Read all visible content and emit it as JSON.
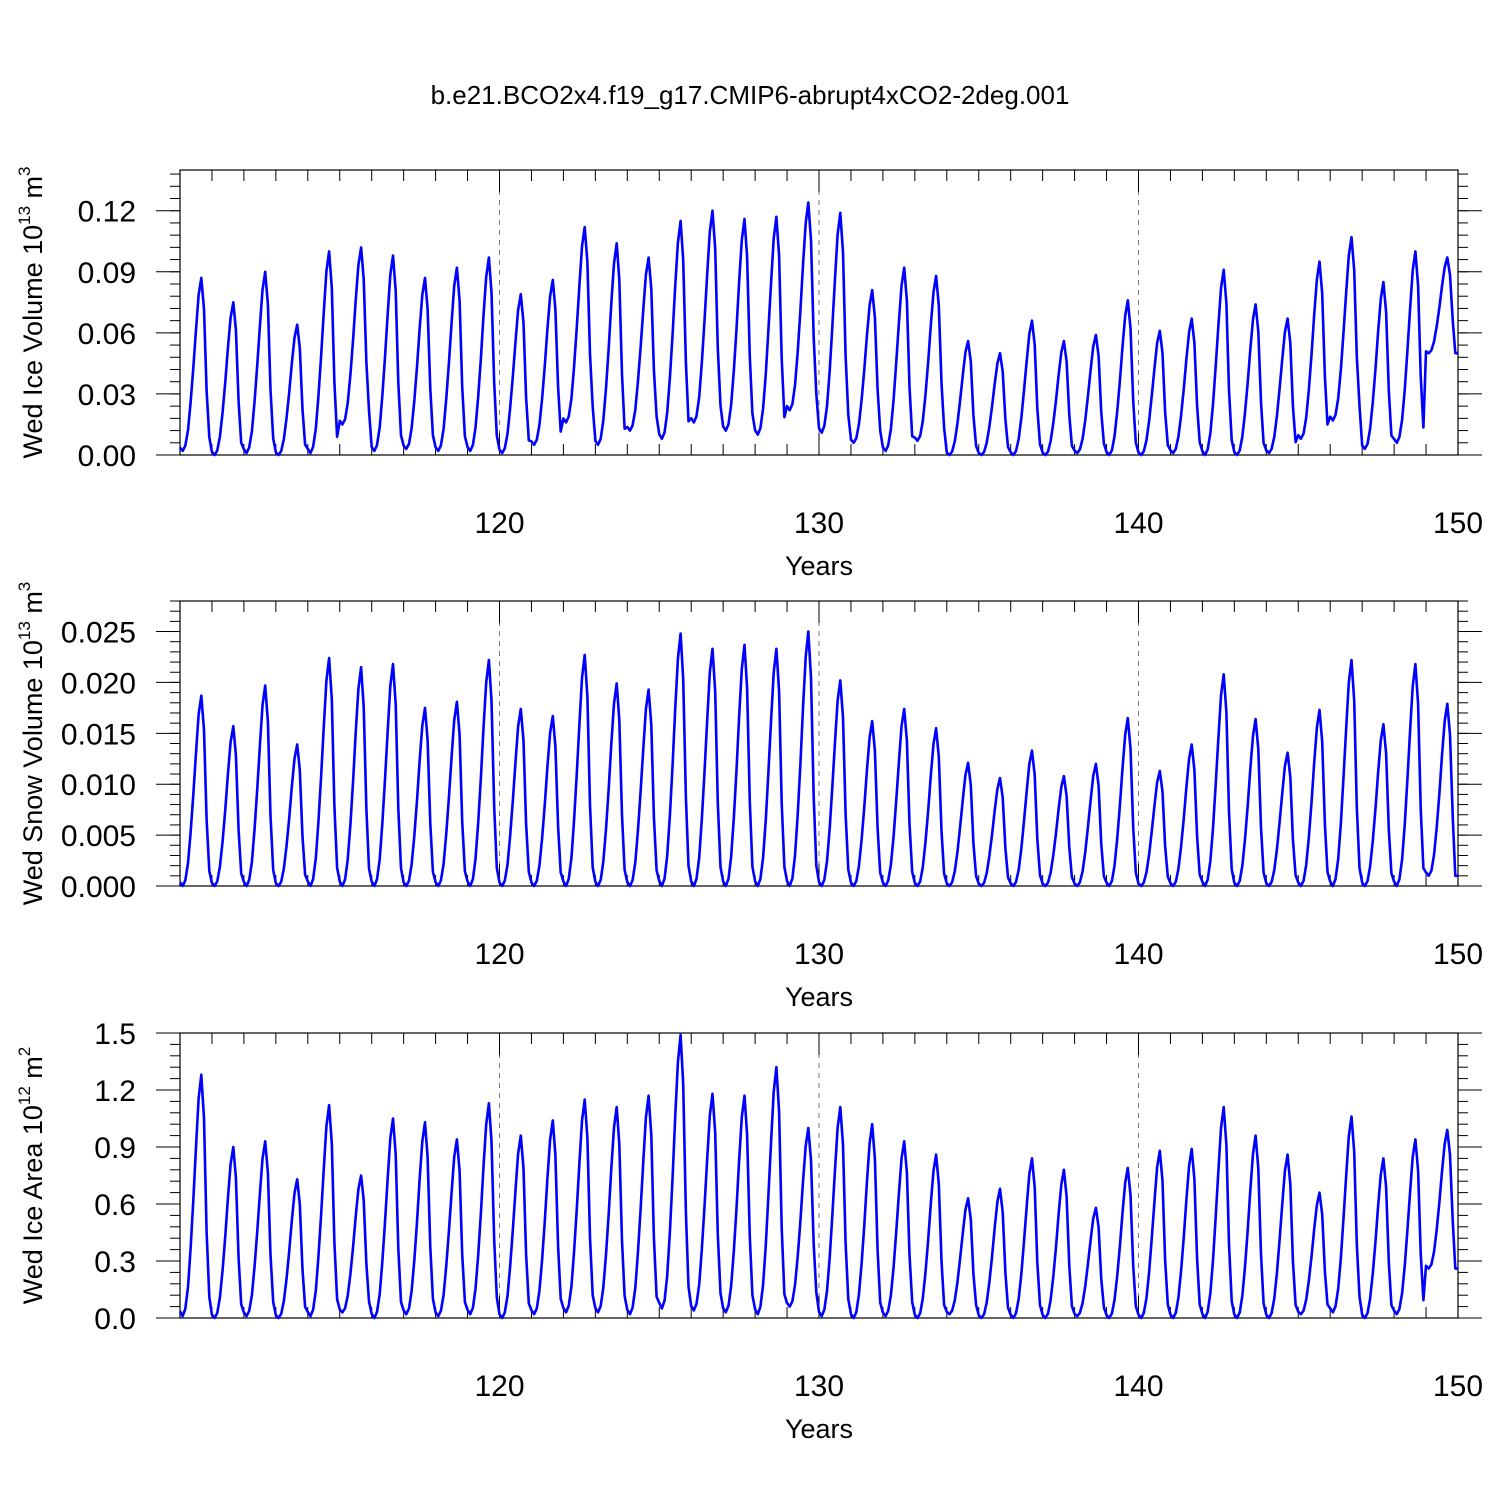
{
  "title": "b.e21.BCO2x4.f19_g17.CMIP6-abrupt4xCO2-2deg.001",
  "chart_data": [
    {
      "type": "line",
      "ylabel": "Wed Ice Volume 10",
      "ylabel_exp": "13",
      "ylabel_unit": " m",
      "ylabel_unit_exp": "3",
      "xlabel": "Years",
      "xlim": [
        110,
        150
      ],
      "ylim": [
        0,
        0.14
      ],
      "yticks": [
        "0.00",
        "0.03",
        "0.06",
        "0.09",
        "0.12"
      ],
      "ytick_values": [
        0,
        0.03,
        0.06,
        0.09,
        0.12
      ],
      "xticks": [
        "120",
        "130",
        "140",
        "150"
      ],
      "xtick_values": [
        120,
        130,
        140,
        150
      ],
      "year_start": 111,
      "line_color": "#0000ff",
      "annual_max": [
        0.087,
        0.075,
        0.09,
        0.064,
        0.1,
        0.102,
        0.098,
        0.087,
        0.092,
        0.097,
        0.079,
        0.086,
        0.112,
        0.104,
        0.097,
        0.115,
        0.12,
        0.116,
        0.117,
        0.124,
        0.119,
        0.081,
        0.092,
        0.088,
        0.056,
        0.05,
        0.066,
        0.056,
        0.059,
        0.076,
        0.061,
        0.067,
        0.091,
        0.074,
        0.067,
        0.095,
        0.107,
        0.085,
        0.1,
        0.097
      ],
      "annual_min": [
        0.002,
        0.0,
        0.001,
        0.0,
        0.001,
        0.015,
        0.002,
        0.003,
        0.002,
        0.002,
        0.001,
        0.005,
        0.016,
        0.005,
        0.012,
        0.008,
        0.016,
        0.012,
        0.01,
        0.022,
        0.011,
        0.006,
        0.002,
        0.007,
        0.0,
        0.0,
        0.0,
        0.0,
        0.001,
        0.0,
        0.0,
        0.001,
        0.0,
        0.0,
        0.001,
        0.008,
        0.017,
        0.003,
        0.006,
        0.05
      ]
    },
    {
      "type": "line",
      "ylabel": "Wed Snow Volume 10",
      "ylabel_exp": "13",
      "ylabel_unit": " m",
      "ylabel_unit_exp": "3",
      "xlabel": "Years",
      "xlim": [
        110,
        150
      ],
      "ylim": [
        0,
        0.028
      ],
      "yticks": [
        "0.000",
        "0.005",
        "0.010",
        "0.015",
        "0.020",
        "0.025"
      ],
      "ytick_values": [
        0,
        0.005,
        0.01,
        0.015,
        0.02,
        0.025
      ],
      "xticks": [
        "120",
        "130",
        "140",
        "150"
      ],
      "xtick_values": [
        120,
        130,
        140,
        150
      ],
      "year_start": 111,
      "line_color": "#0000ff",
      "annual_max": [
        0.0187,
        0.0157,
        0.0197,
        0.0139,
        0.0224,
        0.0215,
        0.0218,
        0.0175,
        0.0181,
        0.0222,
        0.0174,
        0.0167,
        0.0227,
        0.0199,
        0.0193,
        0.0248,
        0.0233,
        0.0237,
        0.0233,
        0.025,
        0.0202,
        0.0162,
        0.0174,
        0.0155,
        0.0121,
        0.0106,
        0.0133,
        0.0108,
        0.012,
        0.0165,
        0.0113,
        0.0139,
        0.0208,
        0.0164,
        0.0131,
        0.0173,
        0.0222,
        0.0159,
        0.0218,
        0.0179
      ],
      "annual_min": [
        0.0,
        0.0,
        0.0,
        0.0,
        0.0,
        0.0,
        0.0,
        0.0,
        0.0,
        0.0,
        0.0,
        0.0,
        0.0,
        0.0,
        0.0,
        0.0,
        0.0,
        0.0,
        0.0,
        0.0,
        0.0,
        0.0,
        0.0,
        0.0,
        0.0,
        0.0,
        0.0,
        0.0,
        0.0,
        0.0,
        0.0,
        0.0,
        0.0,
        0.0,
        0.0,
        0.0,
        0.0,
        0.0,
        0.0,
        0.001
      ]
    },
    {
      "type": "line",
      "ylabel": "Wed Ice Area 10",
      "ylabel_exp": "12",
      "ylabel_unit": " m",
      "ylabel_unit_exp": "2",
      "xlabel": "Years",
      "xlim": [
        110,
        150
      ],
      "ylim": [
        0,
        1.5
      ],
      "yticks": [
        "0.0",
        "0.3",
        "0.6",
        "0.9",
        "1.2",
        "1.5"
      ],
      "ytick_values": [
        0,
        0.3,
        0.6,
        0.9,
        1.2,
        1.5
      ],
      "xticks": [
        "120",
        "130",
        "140",
        "150"
      ],
      "xtick_values": [
        120,
        130,
        140,
        150
      ],
      "year_start": 111,
      "line_color": "#0000ff",
      "annual_max": [
        1.28,
        0.9,
        0.93,
        0.73,
        1.12,
        0.75,
        1.05,
        1.03,
        0.94,
        1.13,
        0.96,
        1.04,
        1.15,
        1.11,
        1.17,
        1.49,
        1.18,
        1.17,
        1.32,
        1.0,
        1.11,
        1.02,
        0.93,
        0.86,
        0.63,
        0.68,
        0.84,
        0.78,
        0.58,
        0.79,
        0.88,
        0.89,
        1.11,
        0.96,
        0.86,
        0.66,
        1.06,
        0.84,
        0.94,
        0.99
      ],
      "annual_min": [
        0.01,
        0.0,
        0.01,
        0.0,
        0.01,
        0.03,
        0.0,
        0.02,
        0.01,
        0.02,
        0.0,
        0.02,
        0.03,
        0.03,
        0.02,
        0.05,
        0.04,
        0.03,
        0.02,
        0.06,
        0.01,
        0.0,
        0.01,
        0.0,
        0.02,
        0.0,
        0.0,
        0.0,
        0.01,
        0.0,
        0.0,
        0.0,
        0.0,
        0.0,
        0.0,
        0.02,
        0.03,
        0.0,
        0.02,
        0.26
      ]
    }
  ]
}
